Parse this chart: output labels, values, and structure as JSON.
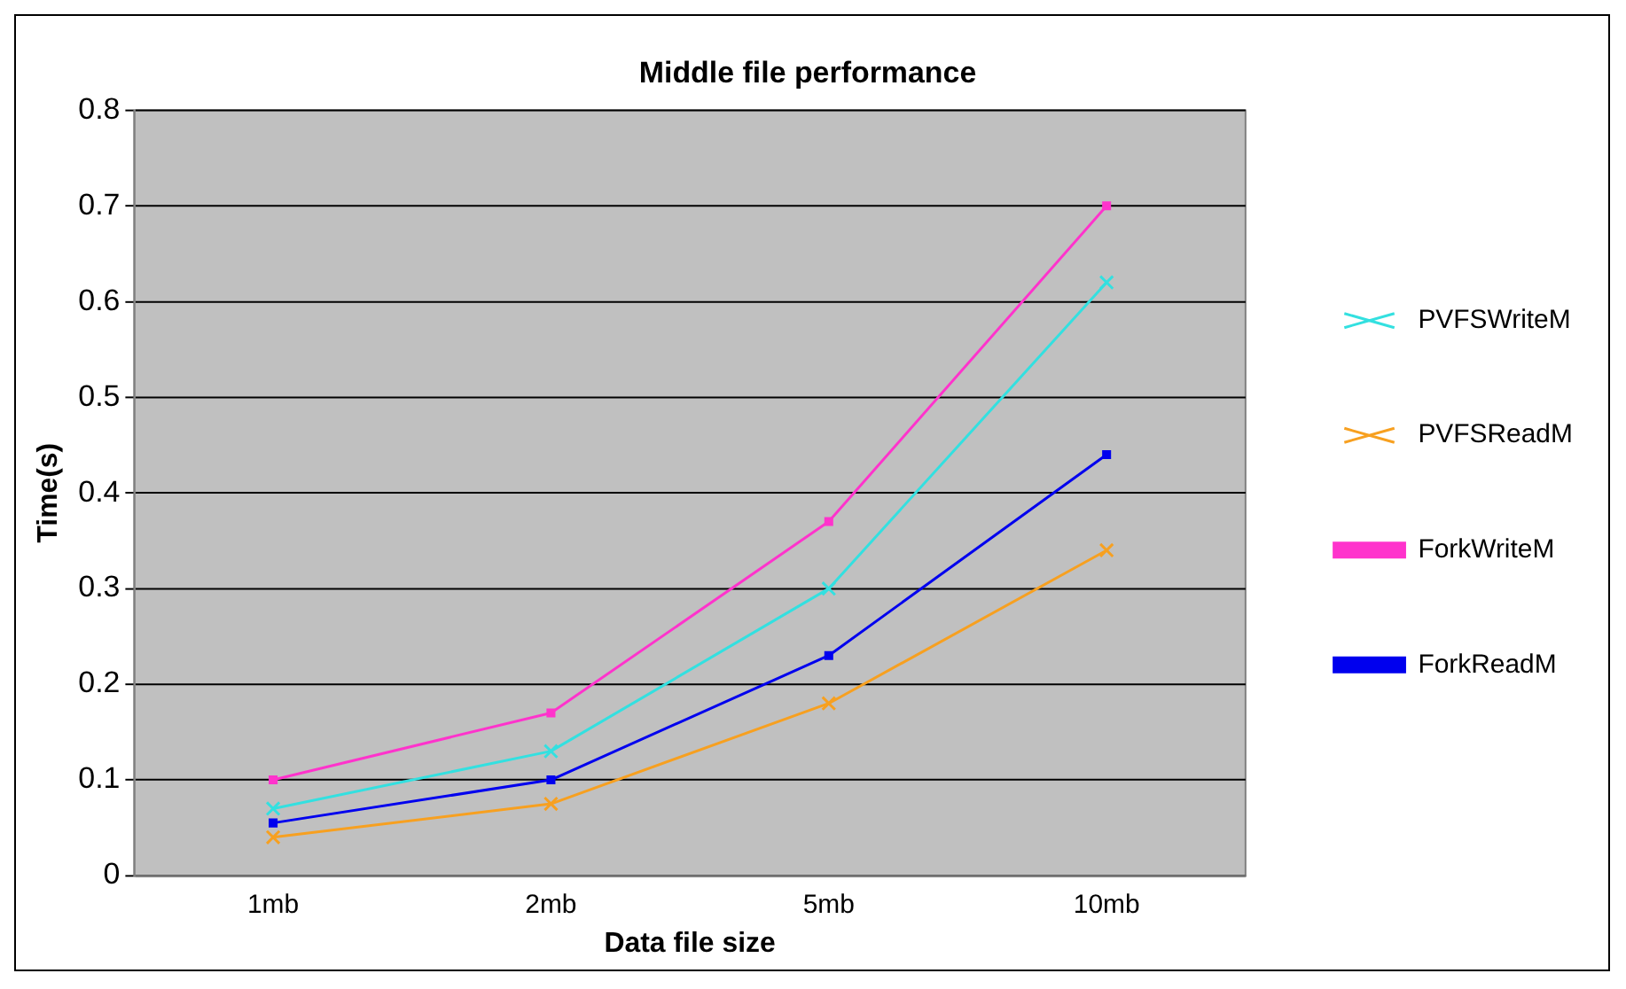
{
  "chart_data": {
    "type": "line",
    "title": "Middle file performance",
    "xlabel": "Data file size",
    "ylabel": "Time(s)",
    "categories": [
      "1mb",
      "2mb",
      "5mb",
      "10mb"
    ],
    "series": [
      {
        "name": "PVFSWriteM",
        "color": "#33e0e0",
        "values": [
          0.07,
          0.13,
          0.3,
          0.62
        ],
        "marker": "cross"
      },
      {
        "name": "PVFSReadM",
        "color": "#f7a020",
        "values": [
          0.04,
          0.075,
          0.18,
          0.34
        ],
        "marker": "cross"
      },
      {
        "name": "ForkWriteM",
        "color": "#ff33cc",
        "values": [
          0.1,
          0.17,
          0.37,
          0.7
        ],
        "marker": "square"
      },
      {
        "name": "ForkReadM",
        "color": "#0000ee",
        "values": [
          0.055,
          0.1,
          0.23,
          0.44
        ],
        "marker": "square"
      }
    ],
    "ylim": [
      0,
      0.8
    ],
    "yticks": [
      0,
      0.1,
      0.2,
      0.3,
      0.4,
      0.5,
      0.6,
      0.7,
      0.8
    ],
    "grid": "y",
    "legend": "right",
    "line_style": "solid"
  }
}
